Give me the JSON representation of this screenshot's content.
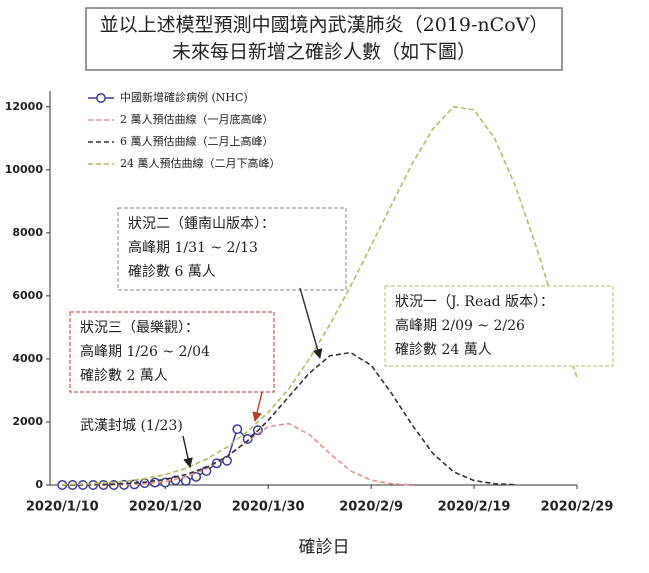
{
  "chart_data": {
    "type": "line",
    "title_lines": [
      "並以上述模型預測中國境內武漢肺炎（2019-nCoV）",
      "未來每日新增之確診人數（如下圖）"
    ],
    "x_label": "確診日",
    "xlim": [
      "2020/1/9",
      "2020/2/29"
    ],
    "xticks": [
      "2020/1/10",
      "2020/1/20",
      "2020/1/30",
      "2020/2/9",
      "2020/2/19",
      "2020/2/29"
    ],
    "ylim": [
      0,
      12500
    ],
    "yticks": [
      0,
      2000,
      4000,
      6000,
      8000,
      10000,
      12000
    ],
    "series": [
      {
        "name": "中國新增確診病例 (NHC)",
        "color": "#3b3b9c",
        "style": "markers",
        "x": [
          "2020/1/10",
          "2020/1/11",
          "2020/1/12",
          "2020/1/13",
          "2020/1/14",
          "2020/1/15",
          "2020/1/16",
          "2020/1/17",
          "2020/1/18",
          "2020/1/19",
          "2020/1/20",
          "2020/1/21",
          "2020/1/22",
          "2020/1/23",
          "2020/1/24",
          "2020/1/25",
          "2020/1/26",
          "2020/1/27",
          "2020/1/28",
          "2020/1/29"
        ],
        "values": [
          0,
          0,
          0,
          0,
          0,
          0,
          4,
          17,
          59,
          77,
          77,
          149,
          131,
          259,
          444,
          688,
          769,
          1771,
          1459,
          1737
        ]
      },
      {
        "name": "2 萬人預估曲線（一月底高峰）",
        "color": "#e8908c",
        "style": "dashed",
        "x": [
          "2020/1/10",
          "2020/1/12",
          "2020/1/14",
          "2020/1/16",
          "2020/1/18",
          "2020/1/20",
          "2020/1/22",
          "2020/1/24",
          "2020/1/26",
          "2020/1/28",
          "2020/1/30",
          "2020/2/1",
          "2020/2/3",
          "2020/2/5",
          "2020/2/7",
          "2020/2/9",
          "2020/2/11",
          "2020/2/13"
        ],
        "values": [
          0,
          0,
          0,
          10,
          40,
          110,
          260,
          520,
          900,
          1400,
          1850,
          1950,
          1600,
          1000,
          450,
          150,
          40,
          5
        ]
      },
      {
        "name": "6 萬人預估曲線（二月上高峰）",
        "color": "#333333",
        "style": "dashed",
        "x": [
          "2020/1/10",
          "2020/1/12",
          "2020/1/14",
          "2020/1/16",
          "2020/1/18",
          "2020/1/20",
          "2020/1/22",
          "2020/1/24",
          "2020/1/26",
          "2020/1/28",
          "2020/1/30",
          "2020/2/1",
          "2020/2/3",
          "2020/2/5",
          "2020/2/7",
          "2020/2/9",
          "2020/2/11",
          "2020/2/13",
          "2020/2/15",
          "2020/2/17",
          "2020/2/19",
          "2020/2/21",
          "2020/2/23"
        ],
        "values": [
          0,
          5,
          15,
          40,
          90,
          180,
          330,
          560,
          900,
          1400,
          2050,
          2800,
          3550,
          4100,
          4200,
          3800,
          2900,
          1900,
          1000,
          420,
          140,
          40,
          10
        ]
      },
      {
        "name": "24 萬人預估曲線（二月下高峰）",
        "color": "#b9b964",
        "style": "dashed",
        "x": [
          "2020/1/10",
          "2020/1/12",
          "2020/1/14",
          "2020/1/16",
          "2020/1/18",
          "2020/1/20",
          "2020/1/22",
          "2020/1/24",
          "2020/1/26",
          "2020/1/28",
          "2020/1/30",
          "2020/2/1",
          "2020/2/3",
          "2020/2/5",
          "2020/2/7",
          "2020/2/9",
          "2020/2/11",
          "2020/2/13",
          "2020/2/15",
          "2020/2/17",
          "2020/2/19",
          "2020/2/21",
          "2020/2/23",
          "2020/2/25",
          "2020/2/27",
          "2020/2/29"
        ],
        "values": [
          10,
          30,
          60,
          110,
          200,
          330,
          530,
          820,
          1200,
          1700,
          2300,
          3050,
          4000,
          5100,
          6300,
          7600,
          8900,
          10200,
          11300,
          12000,
          11900,
          11000,
          9500,
          7600,
          5500,
          3400
        ]
      }
    ],
    "annotations": [
      {
        "lines": [
          "狀況二（鍾南山版本）：",
          "高峰期 1/31 ~ 2/13",
          "確診數 6 萬人"
        ],
        "color": "#333333"
      },
      {
        "lines": [
          "狀況一（J. Read 版本）：",
          "高峰期 2/09 ~ 2/26",
          "確診數 24 萬人"
        ],
        "color": "#333333"
      },
      {
        "lines": [
          "狀況三（最樂觀）：",
          "高峰期 1/26 ~ 2/04",
          "確診數 2 萬人"
        ],
        "color": "#c0392b"
      },
      {
        "lines": [
          "武漢封城 (1/23)"
        ],
        "color": "#222222"
      }
    ]
  }
}
